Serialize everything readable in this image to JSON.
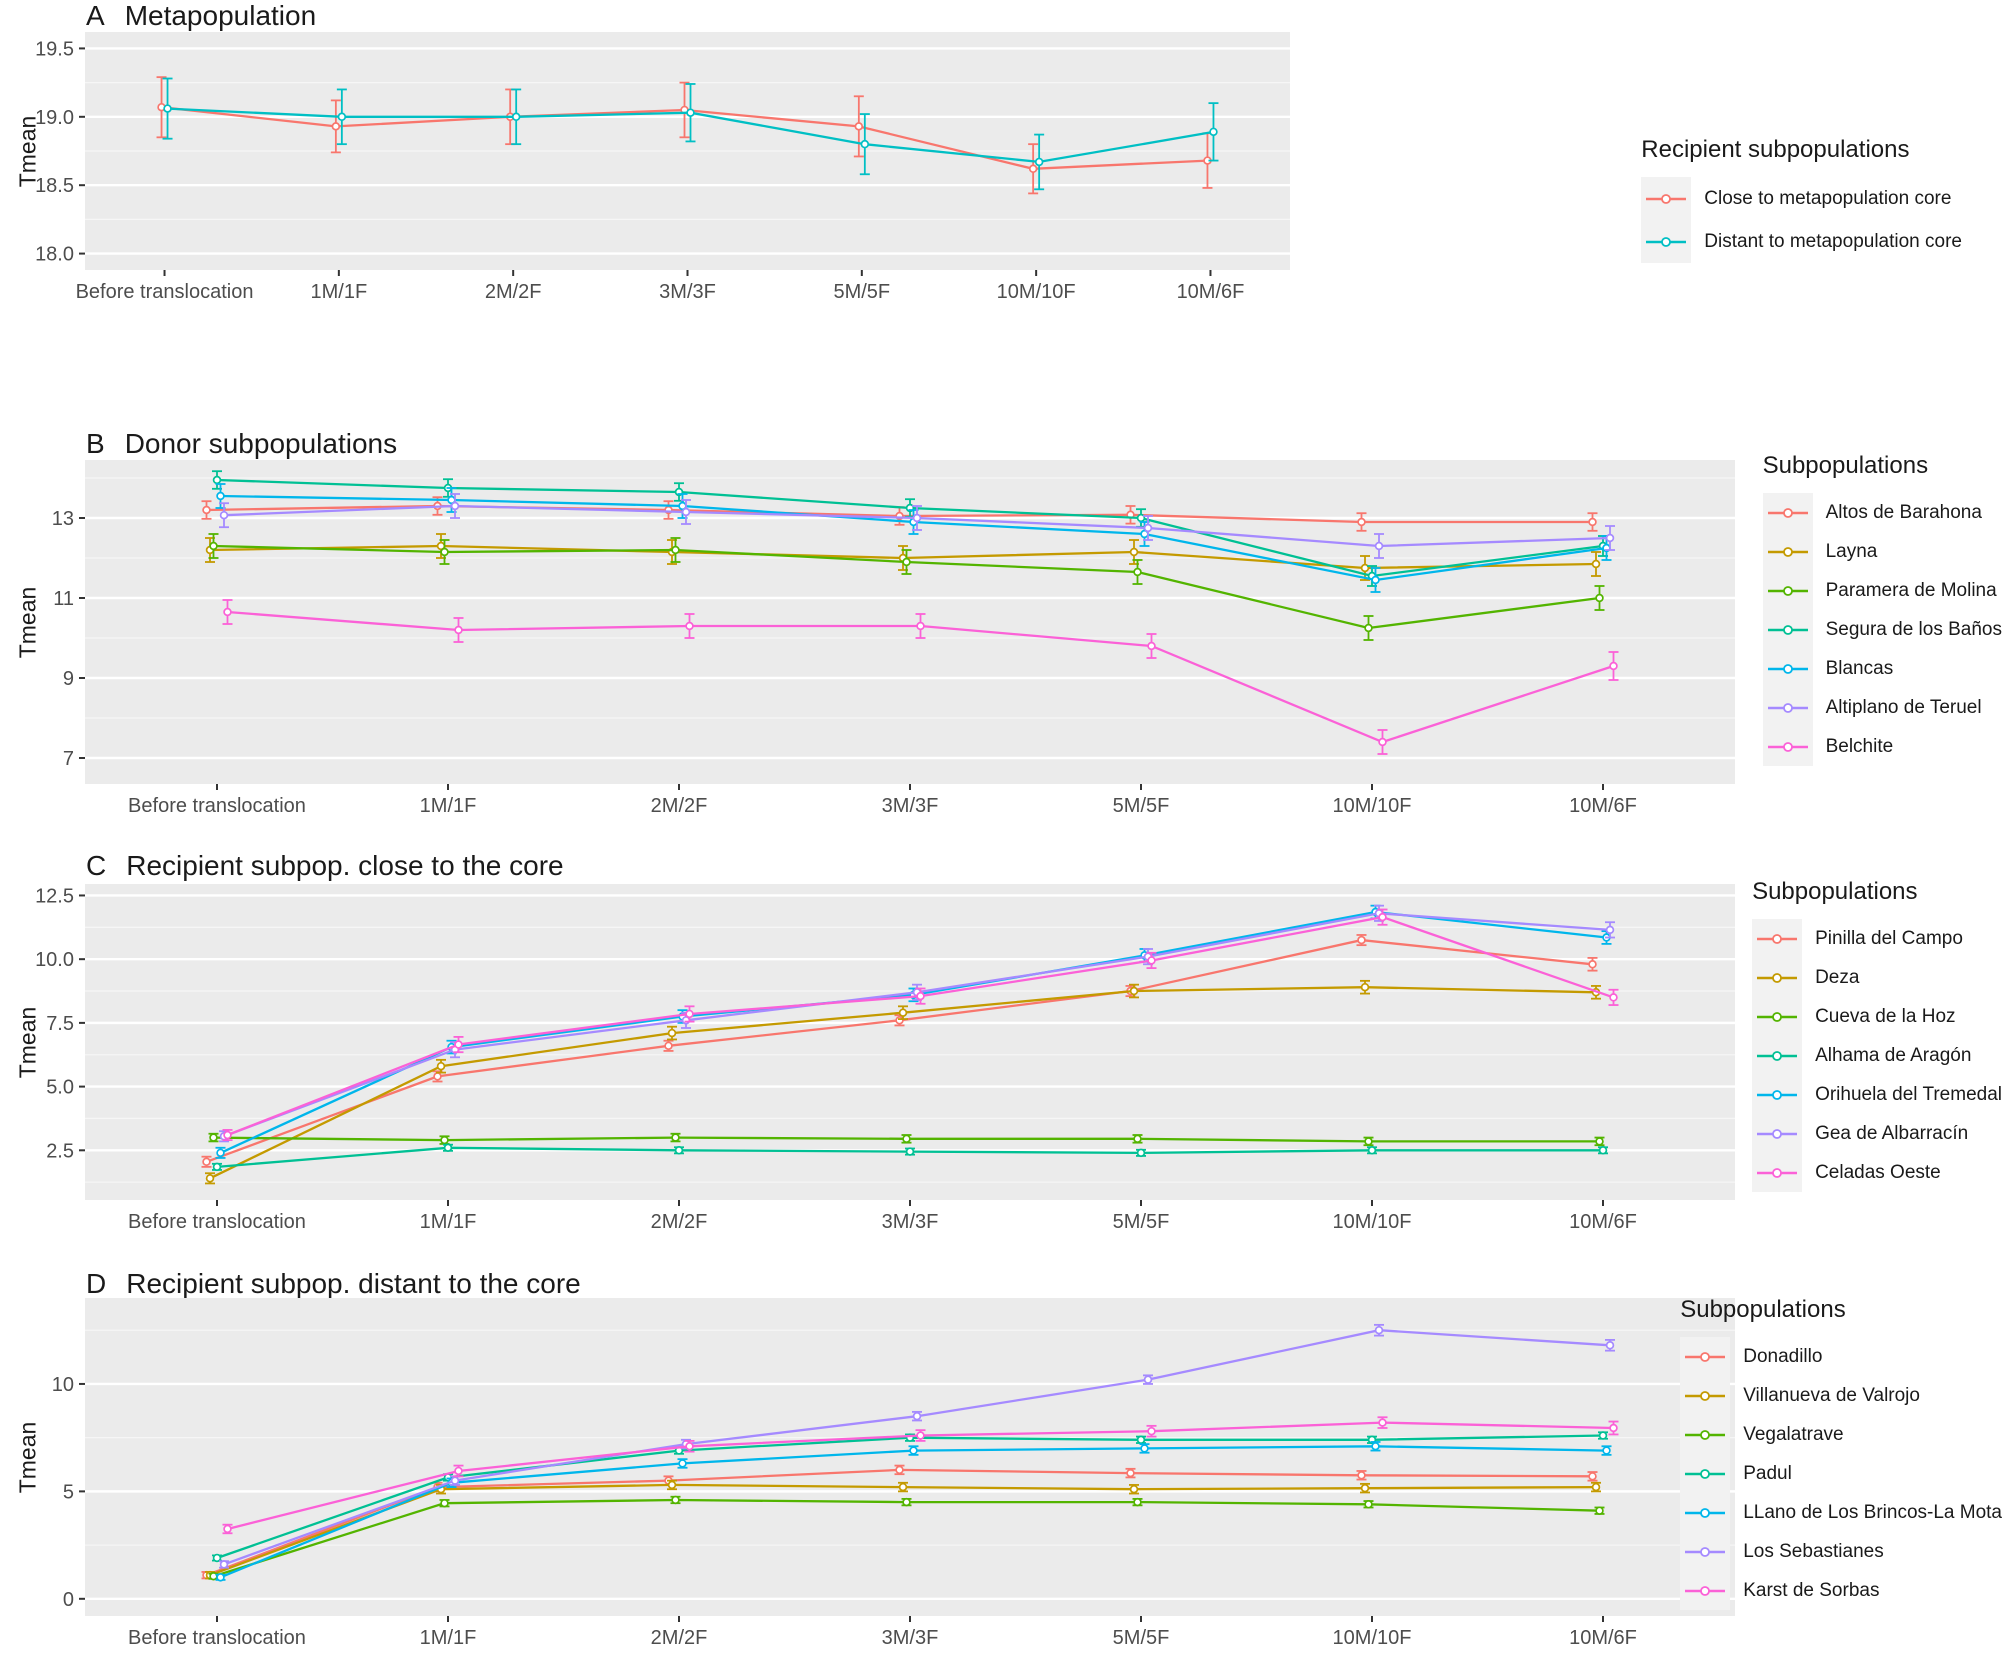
{
  "figure": {
    "background": "#ffffff",
    "panel_background": "#ebebeb",
    "grid_major_color": "#ffffff",
    "grid_minor_color": "#f6f6f6",
    "tick_label_color": "#4d4d4d",
    "title_color": "#1a1a1a"
  },
  "chart_data": [
    {
      "panel_letter": "A",
      "title": "Metapopulation",
      "type": "line",
      "ylabel": "Tmean",
      "legend_title": "Recipient subpopulations",
      "legend_position": "right",
      "grid": true,
      "categories": [
        "Before translocation",
        "1M/1F",
        "2M/2F",
        "3M/3F",
        "5M/5F",
        "10M/10F",
        "10M/6F"
      ],
      "ylim": [
        17.88,
        19.62
      ],
      "ytick_values": [
        18.0,
        18.5,
        19.0,
        19.5
      ],
      "ytick_labels": [
        "18.0",
        "18.5",
        "19.0",
        "19.5"
      ],
      "series": [
        {
          "name": "Close to metapopulation core",
          "color": "#F8766D",
          "values": [
            19.07,
            18.93,
            19.0,
            19.05,
            18.93,
            18.62,
            18.68
          ],
          "err": [
            0.22,
            0.19,
            0.2,
            0.2,
            0.22,
            0.18,
            0.2
          ]
        },
        {
          "name": "Distant to metapopulation core",
          "color": "#00BFC4",
          "values": [
            19.06,
            19.0,
            19.0,
            19.03,
            18.8,
            18.67,
            18.89
          ],
          "err": [
            0.22,
            0.2,
            0.2,
            0.21,
            0.22,
            0.2,
            0.21
          ]
        }
      ]
    },
    {
      "panel_letter": "B",
      "title": "Donor subpopulations",
      "type": "line",
      "ylabel": "Tmean",
      "legend_title": "Subpopulations",
      "legend_position": "right",
      "grid": true,
      "categories": [
        "Before translocation",
        "1M/1F",
        "2M/2F",
        "3M/3F",
        "5M/5F",
        "10M/10F",
        "10M/6F"
      ],
      "ylim": [
        6.35,
        14.45
      ],
      "ytick_values": [
        7,
        9,
        11,
        13
      ],
      "ytick_labels": [
        "7",
        "9",
        "11",
        "13"
      ],
      "series": [
        {
          "name": "Altos de Barahona",
          "color": "#F8766D",
          "values": [
            13.2,
            13.3,
            13.2,
            13.05,
            13.08,
            12.9,
            12.9
          ],
          "err": [
            0.22,
            0.22,
            0.22,
            0.22,
            0.22,
            0.22,
            0.22
          ]
        },
        {
          "name": "Layna",
          "color": "#C49A00",
          "values": [
            12.2,
            12.3,
            12.15,
            12.0,
            12.15,
            11.75,
            11.85
          ],
          "err": [
            0.3,
            0.3,
            0.3,
            0.3,
            0.3,
            0.3,
            0.3
          ]
        },
        {
          "name": "Paramera de Molina",
          "color": "#53B400",
          "values": [
            12.3,
            12.15,
            12.2,
            11.9,
            11.65,
            10.25,
            11.0
          ],
          "err": [
            0.3,
            0.3,
            0.3,
            0.3,
            0.3,
            0.3,
            0.3
          ]
        },
        {
          "name": "Segura de los Baños",
          "color": "#00C094",
          "values": [
            13.95,
            13.75,
            13.65,
            13.25,
            13.0,
            11.55,
            12.3
          ],
          "err": [
            0.22,
            0.22,
            0.22,
            0.22,
            0.22,
            0.25,
            0.25
          ]
        },
        {
          "name": "Blancas",
          "color": "#00B6EB",
          "values": [
            13.55,
            13.45,
            13.3,
            12.9,
            12.6,
            11.45,
            12.25
          ],
          "err": [
            0.3,
            0.3,
            0.3,
            0.3,
            0.3,
            0.3,
            0.3
          ]
        },
        {
          "name": "Altiplano de Teruel",
          "color": "#A58AFF",
          "values": [
            13.07,
            13.3,
            13.15,
            13.0,
            12.75,
            12.3,
            12.5
          ],
          "err": [
            0.3,
            0.3,
            0.3,
            0.3,
            0.3,
            0.3,
            0.3
          ]
        },
        {
          "name": "Belchite",
          "color": "#FB61D7",
          "values": [
            10.65,
            10.2,
            10.3,
            10.3,
            9.8,
            7.4,
            9.3
          ],
          "err": [
            0.3,
            0.3,
            0.3,
            0.3,
            0.3,
            0.3,
            0.35
          ]
        }
      ]
    },
    {
      "panel_letter": "C",
      "title": "Recipient subpop. close to the core",
      "type": "line",
      "ylabel": "Tmean",
      "legend_title": "Subpopulations",
      "legend_position": "right",
      "grid": true,
      "categories": [
        "Before translocation",
        "1M/1F",
        "2M/2F",
        "3M/3F",
        "5M/5F",
        "10M/10F",
        "10M/6F"
      ],
      "ylim": [
        0.55,
        12.95
      ],
      "ytick_values": [
        2.5,
        5.0,
        7.5,
        10.0,
        12.5
      ],
      "ytick_labels": [
        "2.5",
        "5.0",
        "7.5",
        "10.0",
        "12.5"
      ],
      "series": [
        {
          "name": "Pinilla del Campo",
          "color": "#F8766D",
          "values": [
            2.05,
            5.4,
            6.6,
            7.6,
            8.75,
            10.75,
            9.8
          ],
          "err": [
            0.2,
            0.2,
            0.2,
            0.2,
            0.2,
            0.2,
            0.25
          ]
        },
        {
          "name": "Deza",
          "color": "#C49A00",
          "values": [
            1.4,
            5.8,
            7.1,
            7.9,
            8.75,
            8.9,
            8.7
          ],
          "err": [
            0.2,
            0.25,
            0.25,
            0.25,
            0.25,
            0.25,
            0.25
          ]
        },
        {
          "name": "Cueva de la Hoz",
          "color": "#53B400",
          "values": [
            3.0,
            2.9,
            3.0,
            2.95,
            2.95,
            2.85,
            2.85
          ],
          "err": [
            0.15,
            0.15,
            0.15,
            0.15,
            0.15,
            0.15,
            0.15
          ]
        },
        {
          "name": "Alhama de Aragón",
          "color": "#00C094",
          "values": [
            1.85,
            2.6,
            2.5,
            2.45,
            2.4,
            2.5,
            2.5
          ],
          "err": [
            0.12,
            0.12,
            0.12,
            0.12,
            0.12,
            0.12,
            0.12
          ]
        },
        {
          "name": "Orihuela del Tremedal",
          "color": "#00B6EB",
          "values": [
            2.4,
            6.55,
            7.75,
            8.6,
            10.15,
            11.85,
            10.85
          ],
          "err": [
            0.2,
            0.25,
            0.25,
            0.25,
            0.25,
            0.25,
            0.25
          ]
        },
        {
          "name": "Gea de Albarracín",
          "color": "#A58AFF",
          "values": [
            3.05,
            6.45,
            7.6,
            8.7,
            10.1,
            11.8,
            11.15
          ],
          "err": [
            0.2,
            0.3,
            0.3,
            0.3,
            0.3,
            0.3,
            0.3
          ]
        },
        {
          "name": "Celadas Oeste",
          "color": "#FB61D7",
          "values": [
            3.1,
            6.65,
            7.85,
            8.55,
            9.95,
            11.65,
            8.5
          ],
          "err": [
            0.2,
            0.3,
            0.3,
            0.3,
            0.3,
            0.3,
            0.3
          ]
        }
      ]
    },
    {
      "panel_letter": "D",
      "title": "Recipient subpop. distant to the core",
      "type": "line",
      "ylabel": "Tmean",
      "legend_title": "Subpopulations",
      "legend_position": "right",
      "grid": true,
      "categories": [
        "Before translocation",
        "1M/1F",
        "2M/2F",
        "3M/3F",
        "5M/5F",
        "10M/10F",
        "10M/6F"
      ],
      "ylim": [
        -0.8,
        14.0
      ],
      "ytick_values": [
        0,
        5,
        10
      ],
      "ytick_labels": [
        "0",
        "5",
        "10"
      ],
      "series": [
        {
          "name": "Donadillo",
          "color": "#F8766D",
          "values": [
            1.1,
            5.2,
            5.5,
            6.0,
            5.85,
            5.75,
            5.7
          ],
          "err": [
            0.15,
            0.2,
            0.2,
            0.2,
            0.2,
            0.2,
            0.2
          ]
        },
        {
          "name": "Villanueva de Valrojo",
          "color": "#C49A00",
          "values": [
            1.1,
            5.1,
            5.3,
            5.2,
            5.1,
            5.15,
            5.2
          ],
          "err": [
            0.15,
            0.2,
            0.2,
            0.2,
            0.2,
            0.2,
            0.2
          ]
        },
        {
          "name": "Vegalatrave",
          "color": "#53B400",
          "values": [
            1.05,
            4.45,
            4.6,
            4.5,
            4.5,
            4.4,
            4.1
          ],
          "err": [
            0.12,
            0.15,
            0.15,
            0.15,
            0.15,
            0.15,
            0.15
          ]
        },
        {
          "name": "Padul",
          "color": "#00C094",
          "values": [
            1.9,
            5.65,
            6.9,
            7.5,
            7.4,
            7.4,
            7.6
          ],
          "err": [
            0.12,
            0.15,
            0.15,
            0.15,
            0.15,
            0.15,
            0.15
          ]
        },
        {
          "name": "LLano de Los Brincos-La Mota",
          "color": "#00B6EB",
          "values": [
            1.0,
            5.4,
            6.3,
            6.9,
            7.0,
            7.1,
            6.9
          ],
          "err": [
            0.12,
            0.2,
            0.2,
            0.2,
            0.2,
            0.2,
            0.2
          ]
        },
        {
          "name": "Los Sebastianes",
          "color": "#A58AFF",
          "values": [
            1.6,
            5.5,
            7.2,
            8.5,
            10.2,
            12.5,
            11.8
          ],
          "err": [
            0.15,
            0.2,
            0.2,
            0.2,
            0.2,
            0.25,
            0.25
          ]
        },
        {
          "name": "Karst de Sorbas",
          "color": "#FB61D7",
          "values": [
            3.25,
            5.95,
            7.1,
            7.6,
            7.8,
            8.2,
            7.95
          ],
          "err": [
            0.2,
            0.25,
            0.25,
            0.25,
            0.25,
            0.25,
            0.3
          ]
        }
      ]
    }
  ]
}
